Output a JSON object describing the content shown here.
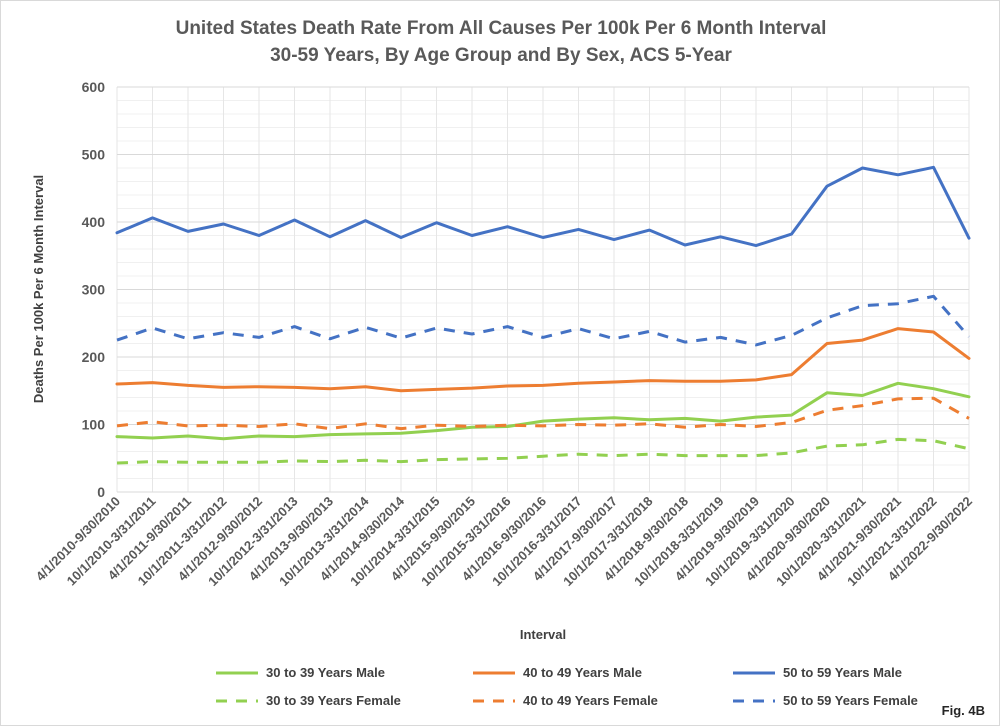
{
  "chart_data": {
    "type": "line",
    "title": [
      "United States Death Rate From All Causes Per 100k Per 6 Month Interval",
      "30-59 Years, By Age Group and By Sex, ACS 5-Year"
    ],
    "xlabel": "Interval",
    "ylabel": "Deaths Per 100k Per 6 Month Interval",
    "ylim": [
      0,
      600
    ],
    "yticks": [
      0,
      100,
      200,
      300,
      400,
      500,
      600
    ],
    "grid": true,
    "legend_position": "bottom",
    "categories": [
      "4/1/2010-9/30/2010",
      "10/1/2010-3/31/2011",
      "4/1/2011-9/30/2011",
      "10/1/2011-3/31/2012",
      "4/1/2012-9/30/2012",
      "10/1/2012-3/31/2013",
      "4/1/2013-9/30/2013",
      "10/1/2013-3/31/2014",
      "4/1/2014-9/30/2014",
      "10/1/2014-3/31/2015",
      "4/1/2015-9/30/2015",
      "10/1/2015-3/31/2016",
      "4/1/2016-9/30/2016",
      "10/1/2016-3/31/2017",
      "4/1/2017-9/30/2017",
      "10/1/2017-3/31/2018",
      "4/1/2018-9/30/2018",
      "10/1/2018-3/31/2019",
      "4/1/2019-9/30/2019",
      "10/1/2019-3/31/2020",
      "4/1/2020-9/30/2020",
      "10/1/2020-3/31/2021",
      "4/1/2021-9/30/2021",
      "10/1/2021-3/31/2022",
      "4/1/2022-9/30/2022"
    ],
    "series": [
      {
        "name": "30 to 39 Years Male",
        "color": "#92d050",
        "dash": "solid",
        "values": [
          82,
          80,
          83,
          79,
          83,
          82,
          85,
          86,
          87,
          91,
          96,
          97,
          105,
          108,
          110,
          107,
          109,
          105,
          111,
          114,
          147,
          143,
          161,
          153,
          141
        ]
      },
      {
        "name": "40 to 49 Years Male",
        "color": "#ed7d31",
        "dash": "solid",
        "values": [
          160,
          162,
          158,
          155,
          156,
          155,
          153,
          156,
          150,
          152,
          154,
          157,
          158,
          161,
          163,
          165,
          164,
          164,
          166,
          174,
          220,
          225,
          242,
          237,
          198
        ]
      },
      {
        "name": "50 to 59 Years Male",
        "color": "#4472c4",
        "dash": "solid",
        "values": [
          384,
          406,
          386,
          397,
          380,
          403,
          378,
          402,
          377,
          399,
          380,
          393,
          377,
          389,
          374,
          388,
          366,
          378,
          365,
          382,
          453,
          480,
          470,
          481,
          376
        ]
      },
      {
        "name": "30 to 39 Years Female",
        "color": "#92d050",
        "dash": "dashed",
        "values": [
          43,
          45,
          44,
          44,
          44,
          46,
          45,
          47,
          45,
          48,
          49,
          50,
          53,
          56,
          54,
          56,
          54,
          54,
          54,
          58,
          68,
          70,
          78,
          76,
          64
        ]
      },
      {
        "name": "40 to 49 Years Female",
        "color": "#ed7d31",
        "dash": "dashed",
        "values": [
          98,
          104,
          98,
          99,
          97,
          101,
          94,
          101,
          94,
          99,
          97,
          99,
          98,
          100,
          99,
          101,
          96,
          100,
          97,
          103,
          121,
          128,
          138,
          139,
          109
        ]
      },
      {
        "name": "50 to 59 Years Female",
        "color": "#4472c4",
        "dash": "dashed",
        "values": [
          225,
          243,
          227,
          236,
          229,
          245,
          227,
          244,
          228,
          243,
          234,
          245,
          229,
          242,
          227,
          238,
          222,
          229,
          218,
          232,
          258,
          276,
          279,
          290,
          230
        ]
      }
    ]
  },
  "figure_label": "Fig. 4B"
}
